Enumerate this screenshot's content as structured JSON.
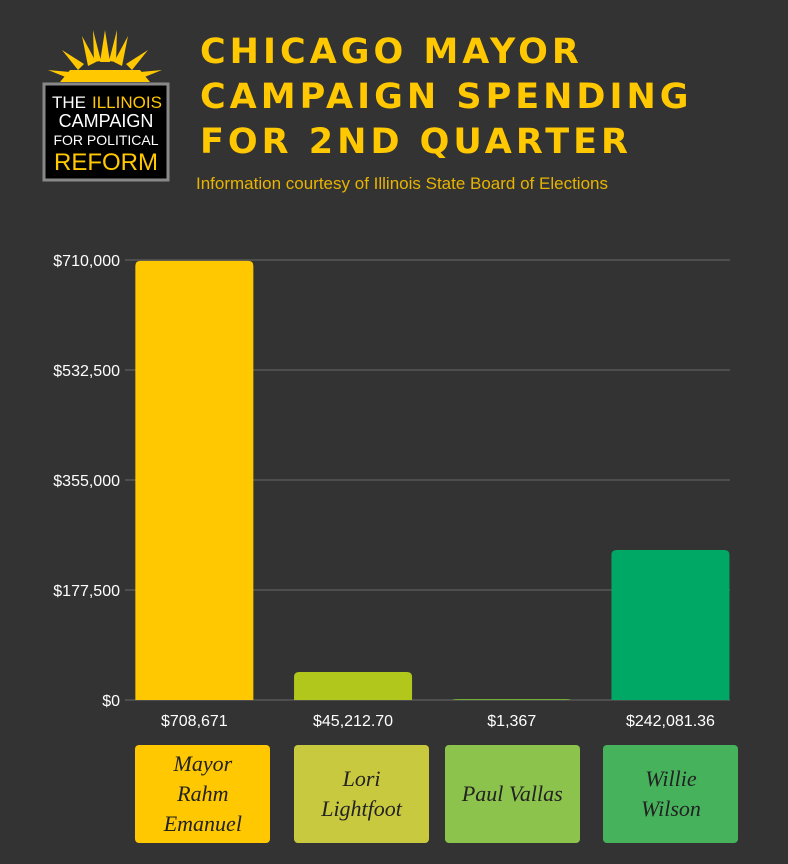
{
  "logo": {
    "lines": [
      "THE",
      "ILLINOIS",
      "CAMPAIGN",
      "FOR POLITICAL",
      "REFORM"
    ]
  },
  "chart_data": {
    "type": "bar",
    "title": [
      "CHICAGO MAYOR",
      "CAMPAIGN SPENDING",
      "FOR  2ND QUARTER"
    ],
    "subtitle": "Information courtesy of Illinois State Board of Elections",
    "categories": [
      "Mayor Rahm Emanuel",
      "Lori Lightfoot",
      "Paul Vallas",
      "Willie Wilson"
    ],
    "values": [
      708671,
      45212.7,
      1367,
      242081.36
    ],
    "value_labels": [
      "$708,671",
      "$45,212.70",
      "$1,367",
      "$242,081.36"
    ],
    "colors": [
      "#ffc800",
      "#b2c71c",
      "#7cbf3c",
      "#00a866"
    ],
    "label_colors": [
      "#ffc800",
      "#c9c93f",
      "#8cc34c",
      "#46b35c"
    ],
    "ylim": [
      0,
      710000
    ],
    "yticks": [
      {
        "value": 0,
        "label": "$0"
      },
      {
        "value": 177500,
        "label": "$177,500"
      },
      {
        "value": 355000,
        "label": "$355,000"
      },
      {
        "value": 532500,
        "label": "$532,500"
      },
      {
        "value": 710000,
        "label": "$710,000"
      }
    ],
    "grid": true
  }
}
